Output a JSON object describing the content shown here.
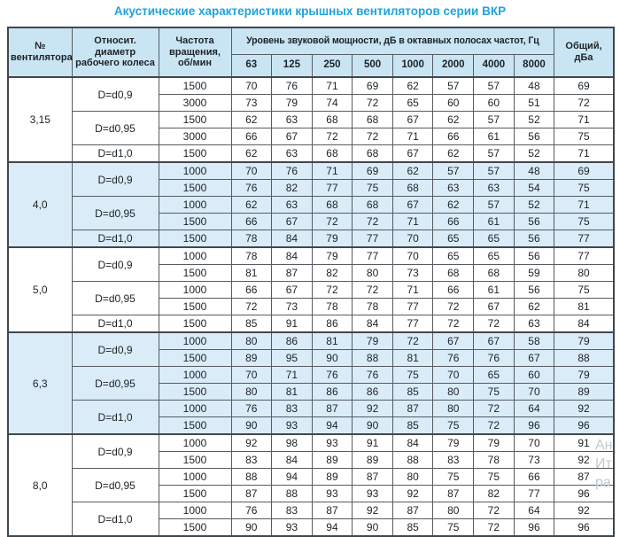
{
  "page": {
    "title": "Акустические характеристики крышных вентиляторов серии ВКР"
  },
  "colors": {
    "title_text": "#1fa3dc",
    "header_bg": "#c9e5f4",
    "shaded_section_bg": "#d9ecf8",
    "border": "#565c61",
    "thick_border": "#40474d",
    "body_text": "#1d2226",
    "watermark_text": "#bfc9cf"
  },
  "watermark": {
    "lines": [
      "Ан",
      "Ит",
      "ра"
    ]
  },
  "chart_data": {
    "type": "table",
    "title": "Акустические характеристики крышных вентиляторов серии ВКР",
    "column_headers": {
      "fan": "№ вентилятора",
      "diameter": "Относит. диаметр рабочего колеса",
      "speed": "Частота вращения, об/мин",
      "spl_group": "Уровень звуковой мощности, дБ в октавных полосах частот, Гц",
      "frequencies": [
        "63",
        "125",
        "250",
        "500",
        "1000",
        "2000",
        "4000",
        "8000"
      ],
      "total": "Общий, дБа"
    },
    "sections": [
      {
        "fan": "3,15",
        "shaded": false,
        "groups": [
          {
            "diameter": "D=d0,9",
            "rows": [
              {
                "speed": "1500",
                "levels": [
                  70,
                  76,
                  71,
                  69,
                  62,
                  57,
                  57,
                  48
                ],
                "total": 69
              },
              {
                "speed": "3000",
                "levels": [
                  73,
                  79,
                  74,
                  72,
                  65,
                  60,
                  60,
                  51
                ],
                "total": 72
              }
            ]
          },
          {
            "diameter": "D=d0,95",
            "rows": [
              {
                "speed": "1500",
                "levels": [
                  62,
                  63,
                  68,
                  68,
                  67,
                  62,
                  57,
                  52
                ],
                "total": 71
              },
              {
                "speed": "3000",
                "levels": [
                  66,
                  67,
                  72,
                  72,
                  71,
                  66,
                  61,
                  56
                ],
                "total": 75
              }
            ]
          },
          {
            "diameter": "D=d1,0",
            "rows": [
              {
                "speed": "1500",
                "levels": [
                  62,
                  63,
                  68,
                  68,
                  67,
                  62,
                  57,
                  52
                ],
                "total": 71
              }
            ]
          }
        ]
      },
      {
        "fan": "4,0",
        "shaded": true,
        "groups": [
          {
            "diameter": "D=d0,9",
            "rows": [
              {
                "speed": "1000",
                "levels": [
                  70,
                  76,
                  71,
                  69,
                  62,
                  57,
                  57,
                  48
                ],
                "total": 69
              },
              {
                "speed": "1500",
                "levels": [
                  76,
                  82,
                  77,
                  75,
                  68,
                  63,
                  63,
                  54
                ],
                "total": 75
              }
            ]
          },
          {
            "diameter": "D=d0,95",
            "rows": [
              {
                "speed": "1000",
                "levels": [
                  62,
                  63,
                  68,
                  68,
                  67,
                  62,
                  57,
                  52
                ],
                "total": 71
              },
              {
                "speed": "1500",
                "levels": [
                  66,
                  67,
                  72,
                  72,
                  71,
                  66,
                  61,
                  56
                ],
                "total": 75
              }
            ]
          },
          {
            "diameter": "D=d1,0",
            "rows": [
              {
                "speed": "1500",
                "levels": [
                  78,
                  84,
                  79,
                  77,
                  70,
                  65,
                  65,
                  56
                ],
                "total": 77
              }
            ]
          }
        ]
      },
      {
        "fan": "5,0",
        "shaded": false,
        "groups": [
          {
            "diameter": "D=d0,9",
            "rows": [
              {
                "speed": "1000",
                "levels": [
                  78,
                  84,
                  79,
                  77,
                  70,
                  65,
                  65,
                  56
                ],
                "total": 77
              },
              {
                "speed": "1500",
                "levels": [
                  81,
                  87,
                  82,
                  80,
                  73,
                  68,
                  68,
                  59
                ],
                "total": 80
              }
            ]
          },
          {
            "diameter": "D=d0,95",
            "rows": [
              {
                "speed": "1000",
                "levels": [
                  66,
                  67,
                  72,
                  72,
                  71,
                  66,
                  61,
                  56
                ],
                "total": 75
              },
              {
                "speed": "1500",
                "levels": [
                  72,
                  73,
                  78,
                  78,
                  77,
                  72,
                  67,
                  62
                ],
                "total": 81
              }
            ]
          },
          {
            "diameter": "D=d1,0",
            "rows": [
              {
                "speed": "1500",
                "levels": [
                  85,
                  91,
                  86,
                  84,
                  77,
                  72,
                  72,
                  63
                ],
                "total": 84
              }
            ]
          }
        ]
      },
      {
        "fan": "6,3",
        "shaded": true,
        "groups": [
          {
            "diameter": "D=d0,9",
            "rows": [
              {
                "speed": "1000",
                "levels": [
                  80,
                  86,
                  81,
                  79,
                  72,
                  67,
                  67,
                  58
                ],
                "total": 79
              },
              {
                "speed": "1500",
                "levels": [
                  89,
                  95,
                  90,
                  88,
                  81,
                  76,
                  76,
                  67
                ],
                "total": 88
              }
            ]
          },
          {
            "diameter": "D=d0,95",
            "rows": [
              {
                "speed": "1000",
                "levels": [
                  70,
                  71,
                  76,
                  76,
                  75,
                  70,
                  65,
                  60
                ],
                "total": 79
              },
              {
                "speed": "1500",
                "levels": [
                  80,
                  81,
                  86,
                  86,
                  85,
                  80,
                  75,
                  70
                ],
                "total": 89
              }
            ]
          },
          {
            "diameter": "D=d1,0",
            "rows": [
              {
                "speed": "1000",
                "levels": [
                  76,
                  83,
                  87,
                  92,
                  87,
                  80,
                  72,
                  64
                ],
                "total": 92
              },
              {
                "speed": "1500",
                "levels": [
                  90,
                  93,
                  94,
                  90,
                  85,
                  75,
                  72,
                  96
                ],
                "total": 96
              }
            ]
          }
        ]
      },
      {
        "fan": "8,0",
        "shaded": false,
        "groups": [
          {
            "diameter": "D=d0,9",
            "rows": [
              {
                "speed": "1000",
                "levels": [
                  92,
                  98,
                  93,
                  91,
                  84,
                  79,
                  79,
                  70
                ],
                "total": 91
              },
              {
                "speed": "1500",
                "levels": [
                  83,
                  84,
                  89,
                  89,
                  88,
                  83,
                  78,
                  73
                ],
                "total": 92
              }
            ]
          },
          {
            "diameter": "D=d0,95",
            "rows": [
              {
                "speed": "1000",
                "levels": [
                  88,
                  94,
                  89,
                  87,
                  80,
                  75,
                  75,
                  66
                ],
                "total": 87
              },
              {
                "speed": "1500",
                "levels": [
                  87,
                  88,
                  93,
                  93,
                  92,
                  87,
                  82,
                  77
                ],
                "total": 96
              }
            ]
          },
          {
            "diameter": "D=d1,0",
            "rows": [
              {
                "speed": "1000",
                "levels": [
                  76,
                  83,
                  87,
                  92,
                  87,
                  80,
                  72,
                  64
                ],
                "total": 92
              },
              {
                "speed": "1500",
                "levels": [
                  90,
                  93,
                  94,
                  90,
                  85,
                  75,
                  72,
                  96
                ],
                "total": 96
              }
            ]
          }
        ]
      }
    ]
  }
}
